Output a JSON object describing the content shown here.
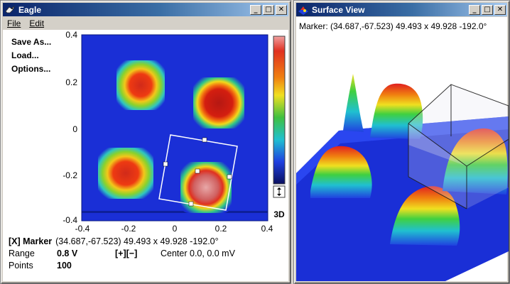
{
  "eagle": {
    "title": "Eagle",
    "menu": [
      "File",
      "Edit"
    ],
    "side_menu": [
      "Save As...",
      "Load...",
      "Options..."
    ],
    "colorbar_toggle": "3D",
    "x_ticks": [
      "-0.4",
      "-0.2",
      "0",
      "0.2",
      "0.4"
    ],
    "y_ticks": [
      "0.4",
      "0.2",
      "0",
      "-0.2",
      "-0.4"
    ],
    "status": {
      "marker_tag": "[X] Marker",
      "marker_value": "(34.687,-67.523) 49.493 x 49.928 -192.0°",
      "range_label": "Range",
      "range_value": "0.8 V",
      "range_buttons": "[+][−]",
      "center_text": "Center 0.0, 0.0 mV",
      "points_label": "Points",
      "points_value": "100"
    }
  },
  "surface": {
    "title": "Surface View",
    "marker_text": "Marker: (34.687,-67.523) 49.493 x 49.928 -192.0°"
  },
  "colors": {
    "titlebar_start": "#0a246a",
    "titlebar_end": "#a6caf0",
    "plot_background": "#1a2fd6"
  },
  "chart_data": {
    "type": "heatmap",
    "xlim": [
      -0.4,
      0.4
    ],
    "ylim": [
      -0.4,
      0.4
    ],
    "squares_center_xy": [
      [
        -0.2,
        0.2
      ],
      [
        0.2,
        0.2
      ],
      [
        -0.2,
        -0.2
      ],
      [
        0.2,
        -0.2
      ]
    ]
  }
}
